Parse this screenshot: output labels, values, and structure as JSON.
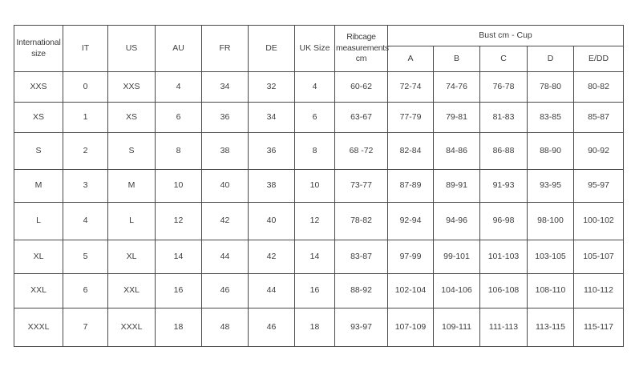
{
  "chart_data": {
    "type": "table",
    "header": {
      "single_columns": [
        "International size",
        "IT",
        "US",
        "AU",
        "FR",
        "DE",
        "UK Size",
        "Ribcage measurements cm"
      ],
      "group": {
        "label": "Bust cm - Cup",
        "sub_columns": [
          "A",
          "B",
          "C",
          "D",
          "E/DD"
        ]
      }
    },
    "rows": [
      [
        "XXS",
        "0",
        "XXS",
        "4",
        "34",
        "32",
        "4",
        "60-62",
        "72-74",
        "74-76",
        "76-78",
        "78-80",
        "80-82"
      ],
      [
        "XS",
        "1",
        "XS",
        "6",
        "36",
        "34",
        "6",
        "63-67",
        "77-79",
        "79-81",
        "81-83",
        "83-85",
        "85-87"
      ],
      [
        "S",
        "2",
        "S",
        "8",
        "38",
        "36",
        "8",
        "68 -72",
        "82-84",
        "84-86",
        "86-88",
        "88-90",
        "90-92"
      ],
      [
        "M",
        "3",
        "M",
        "10",
        "40",
        "38",
        "10",
        "73-77",
        "87-89",
        "89-91",
        "91-93",
        "93-95",
        "95-97"
      ],
      [
        "L",
        "4",
        "L",
        "12",
        "42",
        "40",
        "12",
        "78-82",
        "92-94",
        "94-96",
        "96-98",
        "98-100",
        "100-102"
      ],
      [
        "XL",
        "5",
        "XL",
        "14",
        "44",
        "42",
        "14",
        "83-87",
        "97-99",
        "99-101",
        "101-103",
        "103-105",
        "105-107"
      ],
      [
        "XXL",
        "6",
        "XXL",
        "16",
        "46",
        "44",
        "16",
        "88-92",
        "102-104",
        "104-106",
        "106-108",
        "108-110",
        "110-112"
      ],
      [
        "XXXL",
        "7",
        "XXXL",
        "18",
        "48",
        "46",
        "18",
        "93-97",
        "107-109",
        "109-111",
        "111-113",
        "113-115",
        "115-117"
      ]
    ],
    "colors": {
      "background": "#ffffff",
      "border": "#4a4a4a",
      "text": "#3d3d3d"
    }
  }
}
